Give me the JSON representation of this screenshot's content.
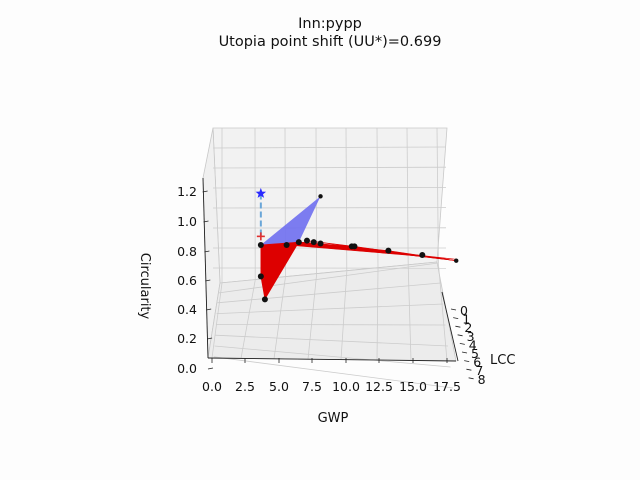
{
  "chart_data": {
    "type": "scatter",
    "title": "Inn:pypp",
    "subtitle": "Utopia point shift (UU*)=0.699",
    "xlabel": "GWP",
    "ylabel": "LCC",
    "zlabel": "Circularity",
    "x_ticks": [
      "0.0",
      "2.5",
      "5.0",
      "7.5",
      "10.0",
      "12.5",
      "15.0",
      "17.5"
    ],
    "y_ticks": [
      "0",
      "1",
      "2",
      "3",
      "4",
      "5",
      "6",
      "7",
      "8"
    ],
    "z_ticks": [
      "0.0",
      "0.2",
      "0.4",
      "0.6",
      "0.8",
      "1.0",
      "1.2"
    ],
    "xlim": [
      0,
      18.5
    ],
    "ylim": [
      0,
      8
    ],
    "zlim": [
      0,
      1.3
    ],
    "grid": true,
    "utopia_point": {
      "x": 3.6,
      "y": 0,
      "z": 1.22,
      "marker": "star",
      "color": "#2a2aff"
    },
    "shifted_point": {
      "x": 3.6,
      "y": 0,
      "z": 0.92,
      "marker": "plus",
      "color": "#e03030"
    },
    "pareto_points": [
      {
        "x": 3.6,
        "y": 0,
        "z": 0.86
      },
      {
        "x": 3.6,
        "y": 0,
        "z": 0.64
      },
      {
        "x": 3.9,
        "y": 0,
        "z": 0.48
      },
      {
        "x": 5.5,
        "y": 0,
        "z": 0.86
      },
      {
        "x": 6.4,
        "y": 0,
        "z": 0.88
      },
      {
        "x": 7.0,
        "y": 0,
        "z": 0.89
      },
      {
        "x": 7.5,
        "y": 0,
        "z": 0.88
      },
      {
        "x": 8.0,
        "y": 0,
        "z": 0.87
      },
      {
        "x": 10.3,
        "y": 0,
        "z": 0.85
      },
      {
        "x": 10.5,
        "y": 0,
        "z": 0.85
      },
      {
        "x": 13.0,
        "y": 0,
        "z": 0.82
      },
      {
        "x": 15.5,
        "y": 0,
        "z": 0.79
      },
      {
        "x": 18.0,
        "y": 0,
        "z": 0.75
      },
      {
        "x": 8.0,
        "y": 0,
        "z": 1.2
      }
    ],
    "colors": {
      "front_surface": "#dd0000",
      "upper_surface": "#6f6ff0",
      "shift_line": "#6aa6d8"
    }
  }
}
